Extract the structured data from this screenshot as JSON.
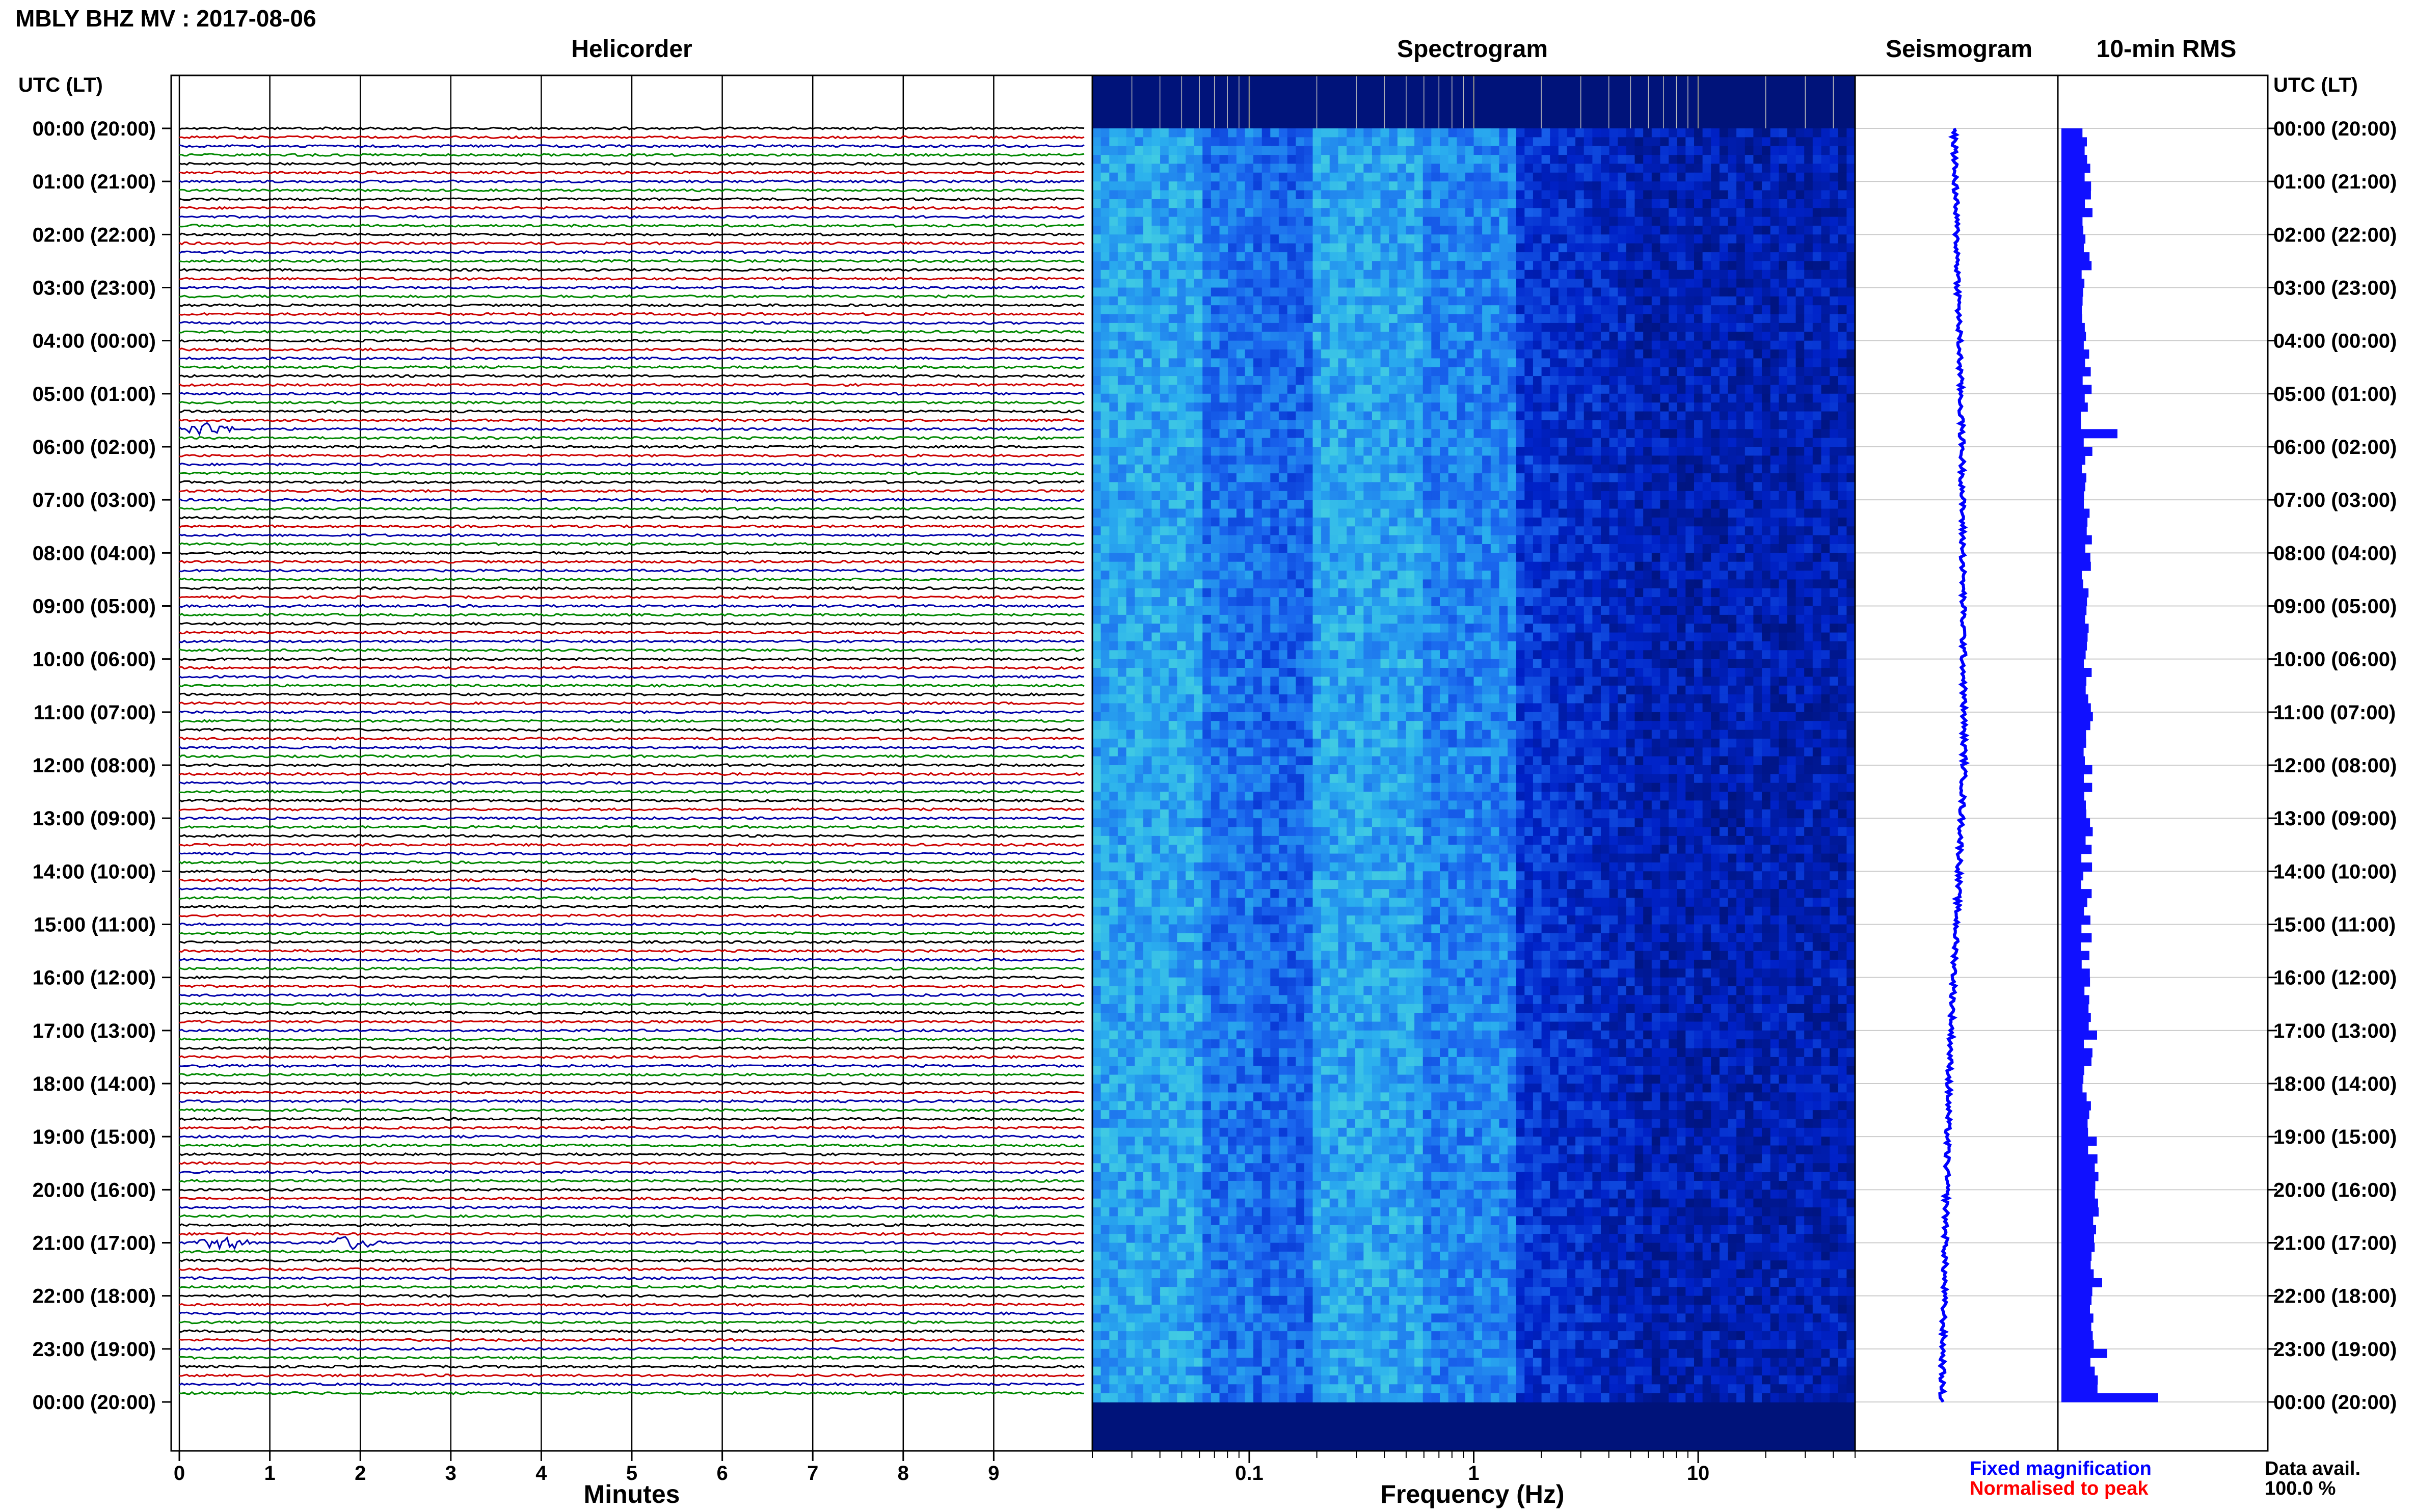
{
  "header": {
    "title": "MBLY BHZ MV : 2017-08-06",
    "left_axis_label": "UTC (LT)",
    "right_axis_label": "UTC (LT)"
  },
  "legend": {
    "fixed": "Fixed magnification",
    "normalised": "Normalised to peak",
    "data_avail_label": "Data avail.",
    "data_avail_value": "100.0 %"
  },
  "colors": {
    "trace_cycle": [
      "#000000",
      "#cc0000",
      "#0000aa",
      "#008800"
    ],
    "fixed": "#0000ff",
    "normalised": "#ff0000",
    "rms": "#1010ff",
    "spectrogram_stops": [
      "#00137a",
      "#0022c8",
      "#1a66ee",
      "#2bb0ee",
      "#55e4d8"
    ]
  },
  "chart_data": [
    {
      "type": "line",
      "name": "helicorder",
      "title": "Helicorder",
      "xlabel": "Minutes",
      "ylabel": "UTC (LT)",
      "xlim": [
        0,
        10
      ],
      "x_ticks": [
        0,
        1,
        2,
        3,
        4,
        5,
        6,
        7,
        8,
        9
      ],
      "x_tick_labels": [
        "0",
        "1",
        "2",
        "3",
        "4",
        "5",
        "6",
        "7",
        "8",
        "9"
      ],
      "rows_per_hour": 6,
      "total_rows": 144,
      "y_tick_labels": [
        "00:00 (20:00)",
        "01:00 (21:00)",
        "02:00 (22:00)",
        "03:00 (23:00)",
        "04:00 (00:00)",
        "05:00 (01:00)",
        "06:00 (02:00)",
        "07:00 (03:00)",
        "08:00 (04:00)",
        "09:00 (05:00)",
        "10:00 (06:00)",
        "11:00 (07:00)",
        "12:00 (08:00)",
        "13:00 (09:00)",
        "14:00 (10:00)",
        "15:00 (11:00)",
        "16:00 (12:00)",
        "17:00 (13:00)",
        "18:00 (14:00)",
        "19:00 (15:00)",
        "20:00 (16:00)",
        "21:00 (17:00)",
        "22:00 (18:00)",
        "23:00 (19:00)",
        "00:00 (20:00)"
      ],
      "events": [
        {
          "row": 34,
          "minute": 0.3,
          "note": "burst"
        },
        {
          "row": 126,
          "minute": 0.5,
          "note": "blip"
        },
        {
          "row": 126,
          "minute": 1.9,
          "note": "blip"
        }
      ]
    },
    {
      "type": "heatmap",
      "name": "spectrogram",
      "title": "Spectrogram",
      "xlabel": "Frequency (Hz)",
      "x_scale": "log",
      "xlim": [
        0.02,
        50
      ],
      "x_ticks": [
        0.1,
        1,
        10
      ],
      "x_tick_labels": [
        "0.1",
        "1",
        "10"
      ],
      "ylim_hours": [
        0,
        24
      ],
      "colorscale": "low power dark blue, high power cyan; energy concentrated 0.05-1 Hz"
    },
    {
      "type": "line",
      "name": "seismogram",
      "title": "Seismogram",
      "note": "vertical trace drifting slightly left through the day",
      "drift": [
        [
          0,
          0.0
        ],
        [
          6,
          0.08
        ],
        [
          12,
          0.1
        ],
        [
          18,
          -0.05
        ],
        [
          24,
          -0.12
        ]
      ]
    },
    {
      "type": "bar",
      "name": "rms",
      "title": "10-min RMS",
      "orientation": "horizontal",
      "rows": 144,
      "baseline_level": 0.25,
      "peaks": [
        [
          34,
          0.55
        ],
        [
          102,
          0.35
        ],
        [
          130,
          0.4
        ],
        [
          138,
          0.45
        ],
        [
          143,
          0.95
        ]
      ]
    }
  ]
}
